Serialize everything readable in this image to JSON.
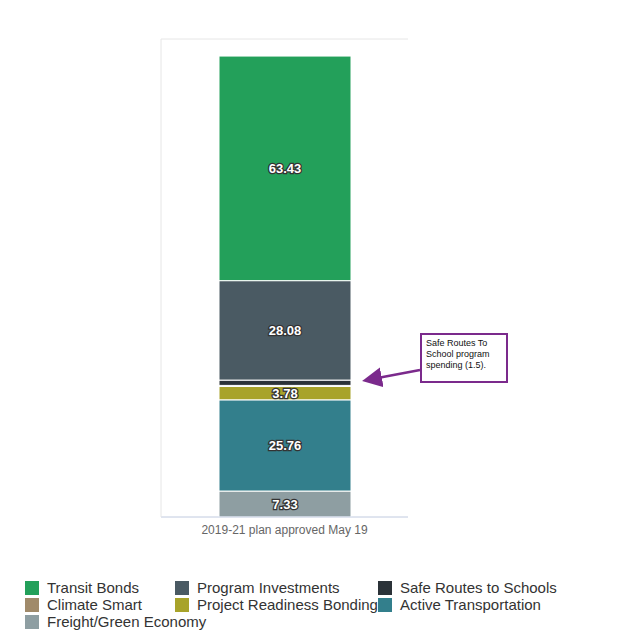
{
  "chart_data": {
    "type": "bar",
    "stacked": true,
    "categories": [
      "2019-21 plan approved May 19"
    ],
    "series": [
      {
        "name": "Transit Bonds",
        "color": "#23a05a",
        "values": [
          63.43
        ],
        "data_labels": true
      },
      {
        "name": "Program Investments",
        "color": "#4a5a63",
        "values": [
          28.08
        ],
        "data_labels": true
      },
      {
        "name": "Safe Routes to Schools",
        "color": "#2b3238",
        "values": [
          1.5
        ],
        "data_labels": false
      },
      {
        "name": "Climate Smart",
        "color": "#a08a6a",
        "values": [
          0.3
        ],
        "data_labels": false
      },
      {
        "name": "Project Readiness Bonding",
        "color": "#a8a32a",
        "values": [
          3.78
        ],
        "data_labels": true
      },
      {
        "name": "Active Transportation",
        "color": "#337f8c",
        "values": [
          25.76
        ],
        "data_labels": true
      },
      {
        "name": "Freight/Green Economy",
        "color": "#8e9ea2",
        "values": [
          7.33
        ],
        "data_labels": true
      }
    ],
    "ylim": [
      0,
      135
    ],
    "yticks": [
      0,
      25,
      50,
      75,
      100,
      125
    ],
    "grid": true,
    "tick_labels": "x",
    "legend": "bottom",
    "annotations": [
      {
        "text": "Safe Routes To School program spending (1.5)."
      }
    ]
  }
}
